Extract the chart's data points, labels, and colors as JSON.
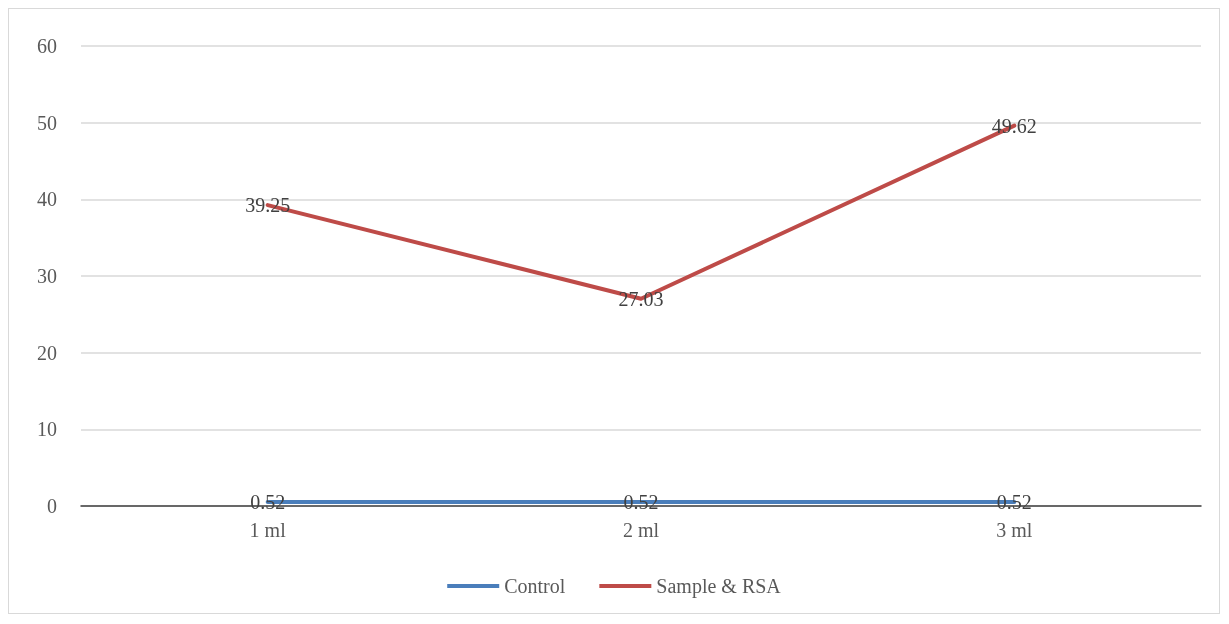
{
  "chart_data": {
    "type": "line",
    "categories": [
      "1 ml",
      "2 ml",
      "3 ml"
    ],
    "series": [
      {
        "name": "Control",
        "color": "#4a7ebb",
        "values": [
          0.52,
          0.52,
          0.52
        ]
      },
      {
        "name": "Sample & RSA",
        "color": "#be4b48",
        "values": [
          39.25,
          27.03,
          49.62
        ]
      }
    ],
    "ylim": [
      0,
      60
    ],
    "yticks": [
      0,
      10,
      20,
      30,
      40,
      50,
      60
    ],
    "grid": "y",
    "legend": "bottom",
    "data_labels": true,
    "marker": "none",
    "line_style": "solid"
  }
}
